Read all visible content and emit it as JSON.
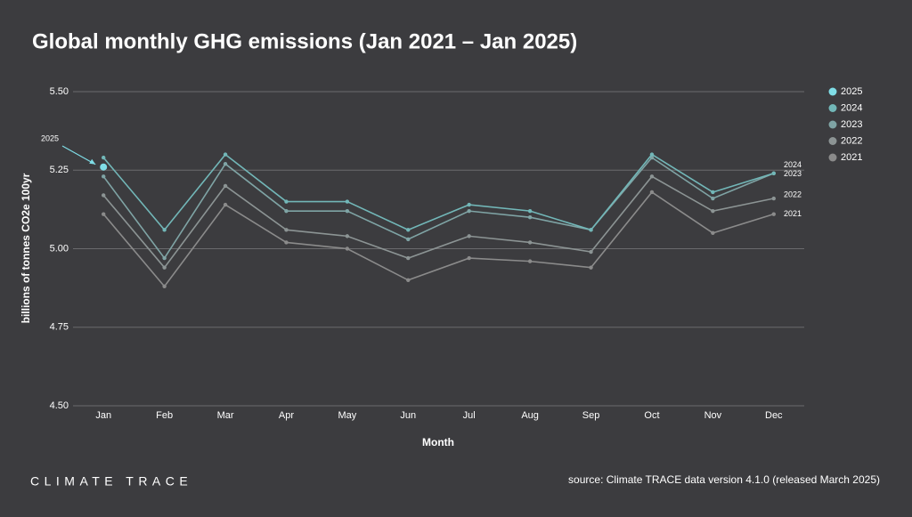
{
  "chart_data": {
    "type": "line",
    "title": "Global monthly GHG emissions (Jan 2021 – Jan 2025)",
    "y_label": "billions of tonnes CO2e 100yr",
    "x_label": "Month",
    "categories": [
      "Jan",
      "Feb",
      "Mar",
      "Apr",
      "May",
      "Jun",
      "Jul",
      "Aug",
      "Sep",
      "Oct",
      "Nov",
      "Dec"
    ],
    "ylim": [
      4.5,
      5.5
    ],
    "yticks": [
      {
        "value": 4.5,
        "label": "4.50"
      },
      {
        "value": 4.75,
        "label": "4.75"
      },
      {
        "value": 5.0,
        "label": "5.00"
      },
      {
        "value": 5.25,
        "label": "5.25"
      },
      {
        "value": 5.5,
        "label": "5.50"
      }
    ],
    "grid": true,
    "legend": "right",
    "series": [
      {
        "name": "2025",
        "color": "#7fdde6",
        "values": [
          5.26,
          null,
          null,
          null,
          null,
          null,
          null,
          null,
          null,
          null,
          null,
          null
        ]
      },
      {
        "name": "2024",
        "color": "#72b7b8",
        "values": [
          5.29,
          5.06,
          5.3,
          5.15,
          5.15,
          5.06,
          5.14,
          5.12,
          5.06,
          5.3,
          5.18,
          5.24
        ]
      },
      {
        "name": "2023",
        "color": "#7fa4a5",
        "values": [
          5.23,
          4.97,
          5.27,
          5.12,
          5.12,
          5.03,
          5.12,
          5.1,
          5.06,
          5.29,
          5.16,
          5.24
        ]
      },
      {
        "name": "2022",
        "color": "#8c9494",
        "values": [
          5.17,
          4.94,
          5.2,
          5.06,
          5.04,
          4.97,
          5.04,
          5.02,
          4.99,
          5.23,
          5.12,
          5.16
        ]
      },
      {
        "name": "2021",
        "color": "#8b8b8b",
        "values": [
          5.11,
          4.88,
          5.14,
          5.02,
          5.0,
          4.9,
          4.97,
          4.96,
          4.94,
          5.18,
          5.05,
          5.11
        ]
      }
    ]
  },
  "branding": "CLIMATE TRACE",
  "source": "source: Climate TRACE data version 4.1.0 (released March 2025)"
}
